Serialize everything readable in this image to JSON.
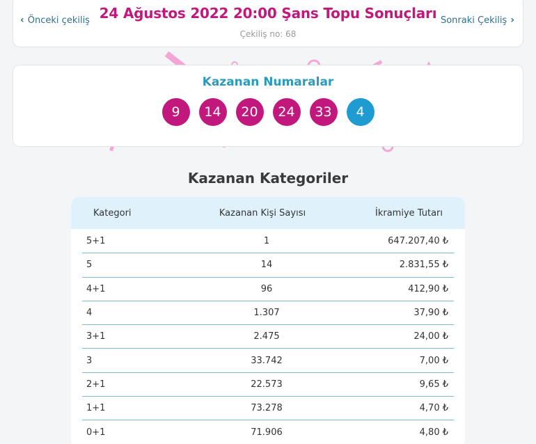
{
  "header": {
    "prev_label": "Önceki çekiliş",
    "next_label": "Sonraki Çekiliş",
    "title": "24 Ağustos 2022 20:00 Şans Topu Sonuçları",
    "draw_number": "Çekiliş no: 68"
  },
  "numbers": {
    "title": "Kazanan Numaralar",
    "main": [
      "9",
      "14",
      "20",
      "24",
      "33"
    ],
    "bonus": "4"
  },
  "categories": {
    "title": "Kazanan Kategoriler",
    "headers": [
      "Kategori",
      "Kazanan Kişi Sayısı",
      "İkramiye Tutarı"
    ],
    "rows": [
      [
        "5+1",
        "1",
        "647.207,40 ₺"
      ],
      [
        "5",
        "14",
        "2.831,55 ₺"
      ],
      [
        "4+1",
        "96",
        "412,90 ₺"
      ],
      [
        "4",
        "1.307",
        "37,90 ₺"
      ],
      [
        "3+1",
        "2.475",
        "24,00 ₺"
      ],
      [
        "3",
        "33.742",
        "7,00 ₺"
      ],
      [
        "2+1",
        "22.573",
        "9,65 ₺"
      ],
      [
        "1+1",
        "73.278",
        "4,70 ₺"
      ],
      [
        "0+1",
        "71.906",
        "4,80 ₺"
      ]
    ]
  },
  "colors": {
    "brand_magenta": "#c2187d",
    "bonus_blue": "#1e9bd1",
    "accent_teal": "#2a9bbd",
    "deco_pink": "#f3a6d6"
  },
  "icons": {
    "prev": "chevron-left-icon",
    "next": "chevron-right-icon"
  }
}
